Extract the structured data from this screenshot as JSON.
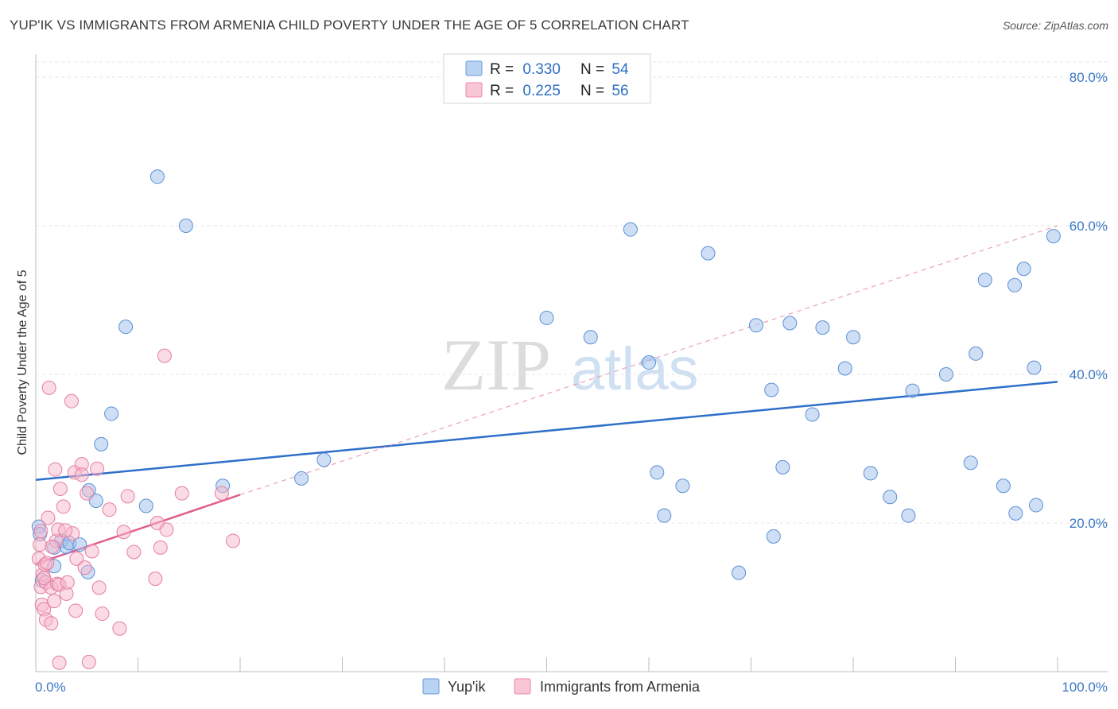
{
  "title": "YUP'IK VS IMMIGRANTS FROM ARMENIA CHILD POVERTY UNDER THE AGE OF 5 CORRELATION CHART",
  "source": "Source: ZipAtlas.com",
  "watermark": {
    "zip": "ZIP",
    "atlas": "atlas"
  },
  "chart_data": {
    "type": "scatter",
    "title": "YUP'IK VS IMMIGRANTS FROM ARMENIA CHILD POVERTY UNDER THE AGE OF 5 CORRELATION CHART",
    "xlabel": "",
    "ylabel": "Child Poverty Under the Age of 5",
    "xlim": [
      0,
      100
    ],
    "ylim": [
      0,
      80
    ],
    "x_tick_labels": {
      "min": "0.0%",
      "max": "100.0%"
    },
    "y_ticks": [
      {
        "value": 20,
        "label": "20.0%"
      },
      {
        "value": 40,
        "label": "40.0%"
      },
      {
        "value": 60,
        "label": "60.0%"
      },
      {
        "value": 80,
        "label": "80.0%"
      }
    ],
    "legend": [
      {
        "r_label": "R = ",
        "r_value": "0.330",
        "n_label": "N = ",
        "n_value": "54"
      },
      {
        "r_label": "R = ",
        "r_value": "0.225",
        "n_label": "N = ",
        "n_value": "56"
      }
    ],
    "series": [
      {
        "name": "Yup'ik",
        "color": "#9dc0ec",
        "stroke": "#5b8fd6",
        "trend": {
          "x0": 0,
          "y0": 25.8,
          "x1": 100,
          "y1": 39.0,
          "color": "#2e6fc9"
        },
        "points": [
          [
            0.3,
            19.5
          ],
          [
            0.4,
            18.5
          ],
          [
            0.6,
            12.3
          ],
          [
            1.8,
            14.2
          ],
          [
            1.8,
            16.7
          ],
          [
            2.5,
            17.6
          ],
          [
            3.0,
            16.8
          ],
          [
            3.3,
            17.3
          ],
          [
            4.3,
            17.1
          ],
          [
            5.1,
            13.4
          ],
          [
            5.2,
            24.4
          ],
          [
            5.9,
            23.0
          ],
          [
            6.4,
            30.6
          ],
          [
            7.4,
            34.7
          ],
          [
            8.8,
            46.4
          ],
          [
            10.8,
            22.3
          ],
          [
            11.9,
            66.6
          ],
          [
            14.7,
            60.0
          ],
          [
            18.3,
            25.0
          ],
          [
            26.0,
            26.0
          ],
          [
            28.2,
            28.5
          ],
          [
            50.0,
            47.6
          ],
          [
            54.3,
            45.0
          ],
          [
            58.2,
            59.5
          ],
          [
            60.0,
            41.6
          ],
          [
            60.8,
            26.8
          ],
          [
            61.5,
            21.0
          ],
          [
            63.3,
            25.0
          ],
          [
            65.8,
            56.3
          ],
          [
            68.8,
            13.3
          ],
          [
            70.5,
            46.6
          ],
          [
            72.0,
            37.9
          ],
          [
            72.2,
            18.2
          ],
          [
            73.1,
            27.5
          ],
          [
            73.8,
            46.9
          ],
          [
            76.0,
            34.6
          ],
          [
            77.0,
            46.3
          ],
          [
            79.2,
            40.8
          ],
          [
            80.0,
            45.0
          ],
          [
            81.7,
            26.7
          ],
          [
            83.6,
            23.5
          ],
          [
            85.4,
            21.0
          ],
          [
            85.8,
            37.8
          ],
          [
            89.1,
            40.0
          ],
          [
            91.5,
            28.1
          ],
          [
            92.0,
            42.8
          ],
          [
            92.9,
            52.7
          ],
          [
            94.7,
            25.0
          ],
          [
            95.8,
            52.0
          ],
          [
            95.9,
            21.3
          ],
          [
            96.7,
            54.2
          ],
          [
            97.7,
            40.9
          ],
          [
            97.9,
            22.4
          ],
          [
            99.6,
            58.6
          ]
        ]
      },
      {
        "name": "Immigrants from Armenia",
        "color": "#f7b7cb",
        "stroke": "#e47fa1",
        "trend": {
          "x0": 0,
          "y0": 14.5,
          "x1": 20,
          "y1": 23.8,
          "color": "#e06090",
          "dash_to": {
            "x": 100,
            "y": 60.0
          }
        },
        "points": [
          [
            0.3,
            15.2
          ],
          [
            0.4,
            17.1
          ],
          [
            0.5,
            18.9
          ],
          [
            0.5,
            11.4
          ],
          [
            0.6,
            9.0
          ],
          [
            0.7,
            13.1
          ],
          [
            0.8,
            8.4
          ],
          [
            0.9,
            14.4
          ],
          [
            1.0,
            7.0
          ],
          [
            1.0,
            12.0
          ],
          [
            1.1,
            14.6
          ],
          [
            1.2,
            20.7
          ],
          [
            1.3,
            38.2
          ],
          [
            1.5,
            6.5
          ],
          [
            1.5,
            11.3
          ],
          [
            1.8,
            9.5
          ],
          [
            1.9,
            27.2
          ],
          [
            2.0,
            17.6
          ],
          [
            2.1,
            11.8
          ],
          [
            2.2,
            19.1
          ],
          [
            2.3,
            11.7
          ],
          [
            2.3,
            1.2
          ],
          [
            2.4,
            24.6
          ],
          [
            2.7,
            22.2
          ],
          [
            3.0,
            10.5
          ],
          [
            3.1,
            12.0
          ],
          [
            3.5,
            36.4
          ],
          [
            3.6,
            18.6
          ],
          [
            3.8,
            26.8
          ],
          [
            3.9,
            8.2
          ],
          [
            4.0,
            15.2
          ],
          [
            4.5,
            27.9
          ],
          [
            4.5,
            26.5
          ],
          [
            4.8,
            14.0
          ],
          [
            5.0,
            24.0
          ],
          [
            5.2,
            1.3
          ],
          [
            5.5,
            16.2
          ],
          [
            6.0,
            27.3
          ],
          [
            6.2,
            11.3
          ],
          [
            6.5,
            7.8
          ],
          [
            7.2,
            21.8
          ],
          [
            8.2,
            5.8
          ],
          [
            8.6,
            18.8
          ],
          [
            9.0,
            23.6
          ],
          [
            9.6,
            16.1
          ],
          [
            11.7,
            12.5
          ],
          [
            11.9,
            20.0
          ],
          [
            12.2,
            16.7
          ],
          [
            12.6,
            42.5
          ],
          [
            12.8,
            19.1
          ],
          [
            14.3,
            24.0
          ],
          [
            18.2,
            24.0
          ],
          [
            19.3,
            17.6
          ],
          [
            2.9,
            19.0
          ],
          [
            1.6,
            16.8
          ],
          [
            0.8,
            12.6
          ]
        ]
      }
    ]
  }
}
